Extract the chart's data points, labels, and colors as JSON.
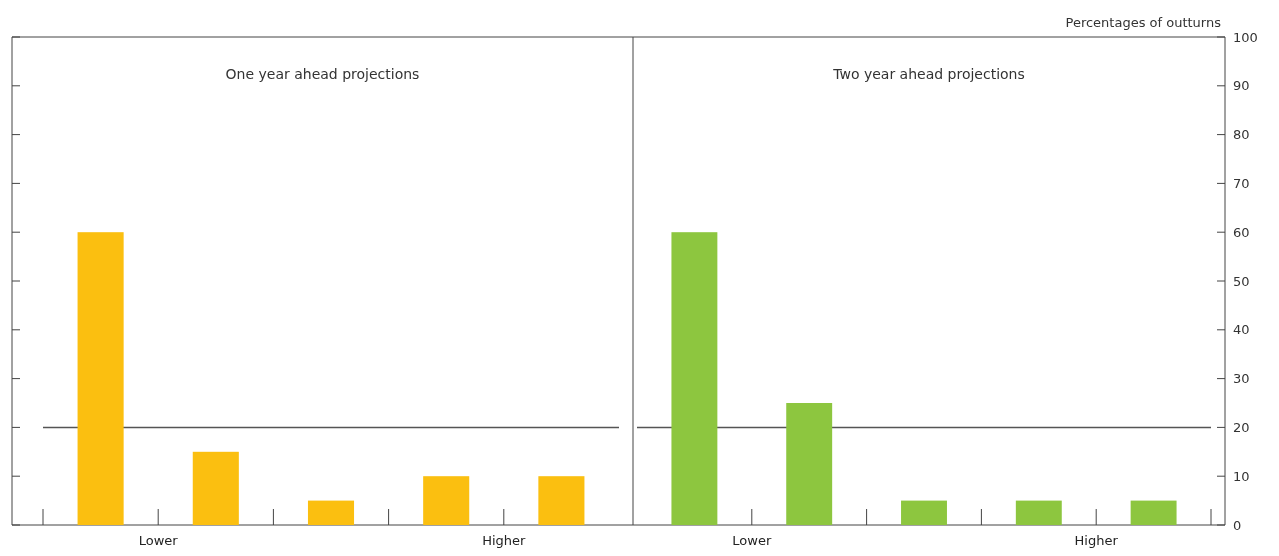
{
  "chart_data": [
    {
      "type": "bar",
      "title": "One year ahead projections",
      "categories": [
        null,
        null,
        null,
        null,
        null
      ],
      "values": [
        60,
        15,
        5,
        10,
        10
      ],
      "color": "#fbbf10",
      "ylim": [
        0,
        100
      ],
      "yticks": [
        0,
        10,
        20,
        30,
        40,
        50,
        60,
        70,
        80,
        90,
        100
      ],
      "ref_lines": [
        {
          "axis": "y",
          "value": 20
        }
      ],
      "tick_labels": false,
      "annotations": [
        "Lower",
        "Higher"
      ]
    },
    {
      "type": "bar",
      "title": "Two year ahead projections",
      "categories": [
        null,
        null,
        null,
        null,
        null
      ],
      "values": [
        60,
        25,
        5,
        5,
        5
      ],
      "color": "#8dc63f",
      "ylim": [
        0,
        100
      ],
      "yticks": [
        0,
        10,
        20,
        30,
        40,
        50,
        60,
        70,
        80,
        90,
        100
      ],
      "ref_lines": [
        {
          "axis": "y",
          "value": 20
        }
      ],
      "tick_labels": "y",
      "ylabel": "Percentages of outturns",
      "annotations": [
        "Lower",
        "Higher"
      ]
    }
  ]
}
